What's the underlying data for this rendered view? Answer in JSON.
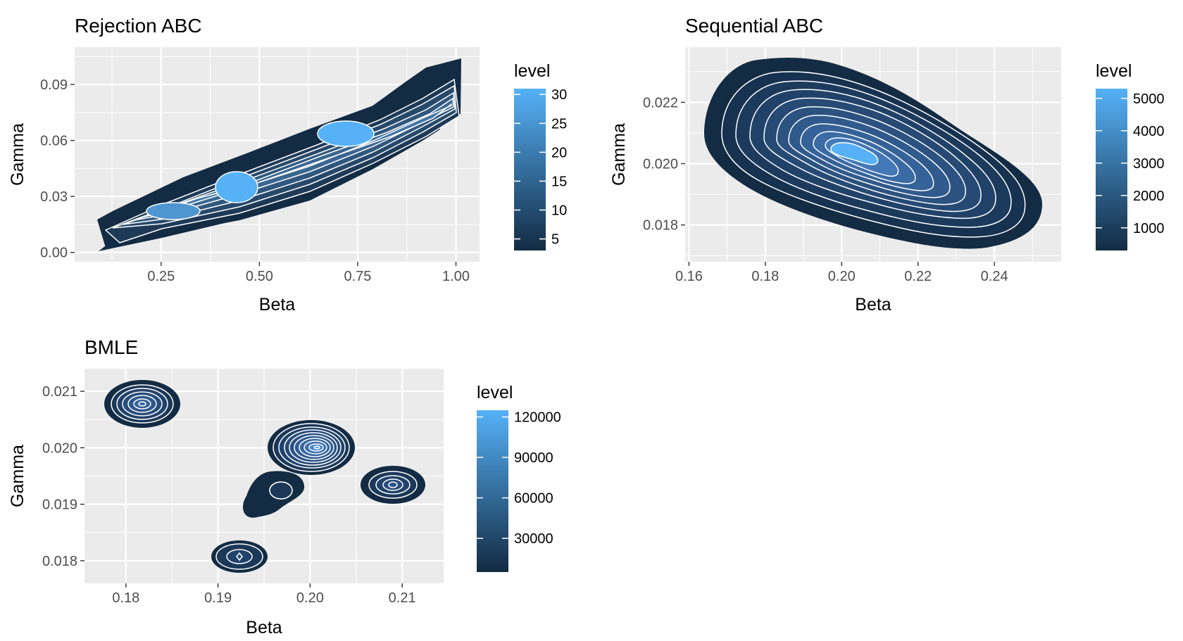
{
  "chart_data": [
    {
      "type": "contour",
      "title": "Rejection ABC",
      "xlabel": "Beta",
      "ylabel": "Gamma",
      "xlim": [
        0.03,
        1.06
      ],
      "ylim": [
        -0.005,
        0.11
      ],
      "xticks": [
        0.25,
        0.5,
        0.75,
        1.0
      ],
      "xtick_labels": [
        "0.25",
        "0.50",
        "0.75",
        "1.00"
      ],
      "yticks": [
        0.0,
        0.03,
        0.06,
        0.09
      ],
      "ytick_labels": [
        "0.00",
        "0.03",
        "0.06",
        "0.09"
      ],
      "grid": true,
      "legend": {
        "title": "level",
        "placement": "right",
        "range": [
          3,
          31
        ],
        "ticks": [
          5,
          10,
          15,
          20,
          25,
          30
        ],
        "tick_labels": [
          "5",
          "10",
          "15",
          "20",
          "25",
          "30"
        ]
      },
      "colors": {
        "low": "#132b43",
        "high": "#56b1f7"
      },
      "peaks": [
        {
          "beta": 0.25,
          "gamma": 0.023,
          "level": 30
        },
        {
          "beta": 0.43,
          "gamma": 0.038,
          "level": 30
        },
        {
          "beta": 0.7,
          "gamma": 0.066,
          "level": 30
        }
      ],
      "n_levels": 7
    },
    {
      "type": "contour",
      "title": "Sequential ABC",
      "xlabel": "Beta",
      "ylabel": "Gamma",
      "xlim": [
        0.159,
        0.2575
      ],
      "ylim": [
        0.0168,
        0.0238
      ],
      "xticks": [
        0.16,
        0.18,
        0.2,
        0.22,
        0.24
      ],
      "xtick_labels": [
        "0.16",
        "0.18",
        "0.20",
        "0.22",
        "0.24"
      ],
      "yticks": [
        0.018,
        0.02,
        0.022
      ],
      "ytick_labels": [
        "0.018",
        "0.020",
        "0.022"
      ],
      "grid": true,
      "legend": {
        "title": "level",
        "placement": "right",
        "range": [
          300,
          5300
        ],
        "ticks": [
          1000,
          2000,
          3000,
          4000,
          5000
        ],
        "tick_labels": [
          "1000",
          "2000",
          "3000",
          "4000",
          "5000"
        ]
      },
      "colors": {
        "low": "#132b43",
        "high": "#56b1f7"
      },
      "peaks": [
        {
          "beta": 0.204,
          "gamma": 0.02,
          "level": 5000
        }
      ],
      "n_levels": 11
    },
    {
      "type": "contour",
      "title": "BMLE",
      "xlabel": "Beta",
      "ylabel": "Gamma",
      "xlim": [
        0.1755,
        0.2145
      ],
      "ylim": [
        0.0176,
        0.0214
      ],
      "xticks": [
        0.18,
        0.19,
        0.2,
        0.21
      ],
      "xtick_labels": [
        "0.18",
        "0.19",
        "0.20",
        "0.21"
      ],
      "yticks": [
        0.018,
        0.019,
        0.02,
        0.021
      ],
      "ytick_labels": [
        "0.018",
        "0.019",
        "0.020",
        "0.021"
      ],
      "grid": true,
      "legend": {
        "title": "level",
        "placement": "right",
        "range": [
          5000,
          125000
        ],
        "ticks": [
          30000,
          60000,
          90000,
          120000
        ],
        "tick_labels": [
          "30000",
          "60000",
          "90000",
          "120000"
        ]
      },
      "colors": {
        "low": "#132b43",
        "high": "#56b1f7"
      },
      "peaks": [
        {
          "beta": 0.1817,
          "gamma": 0.02085,
          "level": 60000
        },
        {
          "beta": 0.2005,
          "gamma": 0.02012,
          "level": 120000
        },
        {
          "beta": 0.1963,
          "gamma": 0.01933,
          "level": 20000
        },
        {
          "beta": 0.2093,
          "gamma": 0.01946,
          "level": 30000
        },
        {
          "beta": 0.1921,
          "gamma": 0.01822,
          "level": 20000
        }
      ],
      "n_levels": 10
    }
  ]
}
